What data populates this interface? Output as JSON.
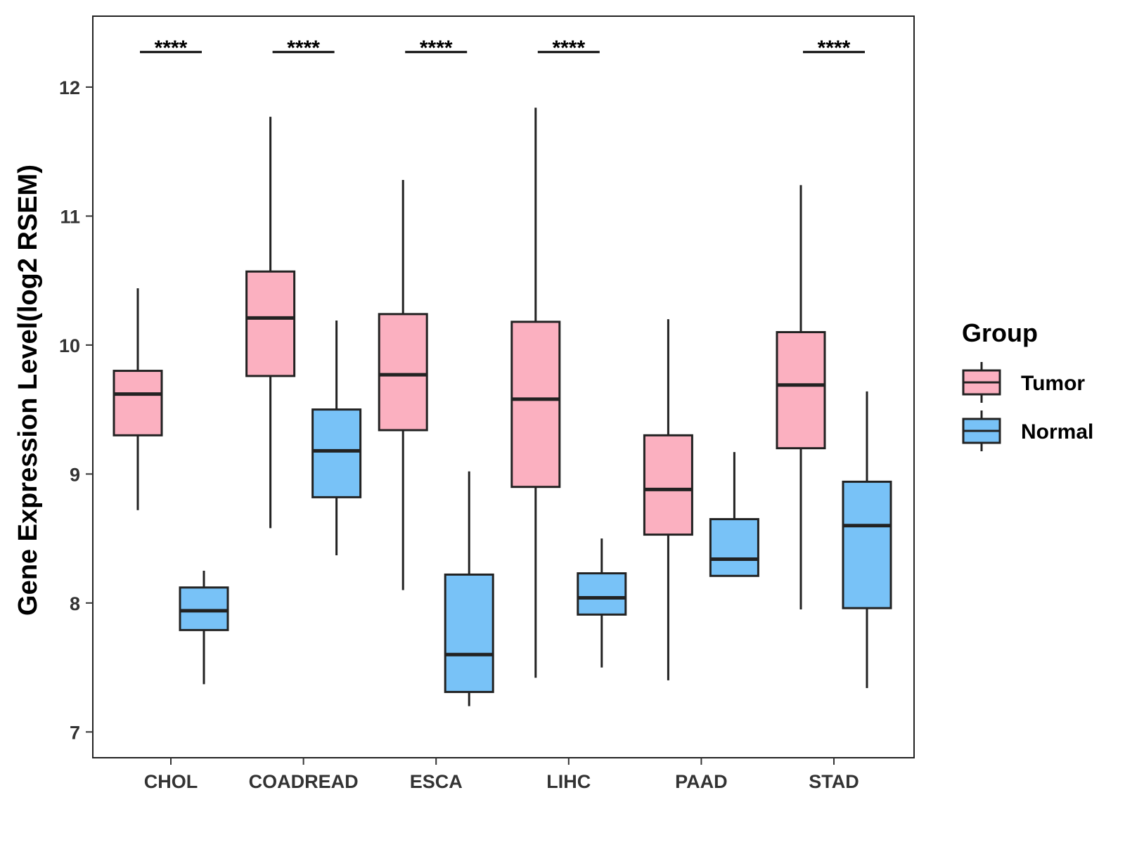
{
  "chart_data": {
    "type": "boxplot",
    "title": "",
    "xlabel": "",
    "ylabel": "Gene Expression Level(log2 RSEM)",
    "ylim": [
      6.8,
      12.55
    ],
    "yticks": [
      7,
      8,
      9,
      10,
      11,
      12
    ],
    "grid": false,
    "legend": {
      "title": "Group",
      "position": "right",
      "entries": [
        "Tumor",
        "Normal"
      ]
    },
    "colors": {
      "Tumor": "#FBB0C0",
      "Normal": "#78C2F7",
      "outline": "#222222"
    },
    "categories": [
      "CHOL",
      "COADREAD",
      "ESCA",
      "LIHC",
      "PAAD",
      "STAD"
    ],
    "series": [
      {
        "name": "Tumor",
        "boxes": [
          {
            "category": "CHOL",
            "whisker_low": 8.72,
            "q1": 9.3,
            "median": 9.62,
            "q3": 9.8,
            "whisker_high": 10.44
          },
          {
            "category": "COADREAD",
            "whisker_low": 8.58,
            "q1": 9.76,
            "median": 10.21,
            "q3": 10.57,
            "whisker_high": 11.77
          },
          {
            "category": "ESCA",
            "whisker_low": 8.1,
            "q1": 9.34,
            "median": 9.77,
            "q3": 10.24,
            "whisker_high": 11.28
          },
          {
            "category": "LIHC",
            "whisker_low": 7.42,
            "q1": 8.9,
            "median": 9.58,
            "q3": 10.18,
            "whisker_high": 11.84
          },
          {
            "category": "PAAD",
            "whisker_low": 7.4,
            "q1": 8.53,
            "median": 8.88,
            "q3": 9.3,
            "whisker_high": 10.2
          },
          {
            "category": "STAD",
            "whisker_low": 7.95,
            "q1": 9.2,
            "median": 9.69,
            "q3": 10.1,
            "whisker_high": 11.24
          }
        ]
      },
      {
        "name": "Normal",
        "boxes": [
          {
            "category": "CHOL",
            "whisker_low": 7.37,
            "q1": 7.79,
            "median": 7.94,
            "q3": 8.12,
            "whisker_high": 8.25
          },
          {
            "category": "COADREAD",
            "whisker_low": 8.37,
            "q1": 8.82,
            "median": 9.18,
            "q3": 9.5,
            "whisker_high": 10.19
          },
          {
            "category": "ESCA",
            "whisker_low": 7.2,
            "q1": 7.31,
            "median": 7.6,
            "q3": 8.22,
            "whisker_high": 9.02
          },
          {
            "category": "LIHC",
            "whisker_low": 7.5,
            "q1": 7.91,
            "median": 8.04,
            "q3": 8.23,
            "whisker_high": 8.5
          },
          {
            "category": "PAAD",
            "whisker_low": 8.21,
            "q1": 8.21,
            "median": 8.34,
            "q3": 8.65,
            "whisker_high": 9.17
          },
          {
            "category": "STAD",
            "whisker_low": 7.34,
            "q1": 7.96,
            "median": 8.6,
            "q3": 8.94,
            "whisker_high": 9.64
          }
        ]
      }
    ],
    "significance": [
      {
        "category": "CHOL",
        "label": "****"
      },
      {
        "category": "COADREAD",
        "label": "****"
      },
      {
        "category": "ESCA",
        "label": "****"
      },
      {
        "category": "LIHC",
        "label": "****"
      },
      {
        "category": "STAD",
        "label": "****"
      }
    ]
  }
}
